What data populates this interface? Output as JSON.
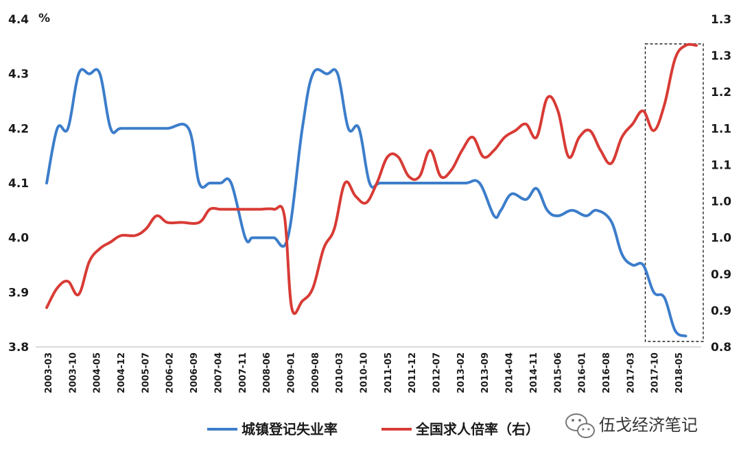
{
  "chart_data": {
    "type": "line",
    "unit_label": "%",
    "x_tick_labels": [
      "2003-03",
      "2003-10",
      "2004-05",
      "2004-12",
      "2005-07",
      "2006-02",
      "2006-09",
      "2007-04",
      "2007-11",
      "2008-06",
      "2009-01",
      "2009-08",
      "2010-03",
      "2010-10",
      "2011-05",
      "2011-12",
      "2012-07",
      "2013-02",
      "2013-09",
      "2014-04",
      "2014-11",
      "2015-06",
      "2016-01",
      "2016-08",
      "2017-03",
      "2017-10",
      "2018-05"
    ],
    "y_left": {
      "ticks": [
        "4.4",
        "4.3",
        "4.2",
        "4.1",
        "4.0",
        "3.9",
        "3.8"
      ],
      "ylim": [
        3.8,
        4.4
      ]
    },
    "y_right": {
      "ticks": [
        "1.3",
        "1.3",
        "1.2",
        "1.1",
        "1.1",
        "1.0",
        "1.0",
        "0.9",
        "0.9",
        "0.8"
      ],
      "ylim": [
        0.8,
        1.3
      ]
    },
    "series": [
      {
        "name": "城镇登记失业率",
        "axis": "left",
        "color": "#3C7DCB",
        "points": [
          [
            2003.17,
            4.1
          ],
          [
            2003.42,
            4.2
          ],
          [
            2003.67,
            4.2
          ],
          [
            2003.92,
            4.3
          ],
          [
            2004.17,
            4.3
          ],
          [
            2004.42,
            4.3
          ],
          [
            2004.67,
            4.2
          ],
          [
            2004.92,
            4.2
          ],
          [
            2005.5,
            4.2
          ],
          [
            2006.0,
            4.2
          ],
          [
            2006.5,
            4.2
          ],
          [
            2006.75,
            4.1
          ],
          [
            2007.0,
            4.1
          ],
          [
            2007.25,
            4.1
          ],
          [
            2007.5,
            4.1
          ],
          [
            2007.83,
            4.0
          ],
          [
            2008.0,
            4.0
          ],
          [
            2008.25,
            4.0
          ],
          [
            2008.5,
            4.0
          ],
          [
            2008.83,
            4.0
          ],
          [
            2009.17,
            4.2
          ],
          [
            2009.42,
            4.3
          ],
          [
            2009.75,
            4.3
          ],
          [
            2010.0,
            4.3
          ],
          [
            2010.25,
            4.2
          ],
          [
            2010.5,
            4.2
          ],
          [
            2010.75,
            4.1
          ],
          [
            2011.0,
            4.1
          ],
          [
            2011.5,
            4.1
          ],
          [
            2012.0,
            4.1
          ],
          [
            2012.5,
            4.1
          ],
          [
            2013.0,
            4.1
          ],
          [
            2013.33,
            4.1
          ],
          [
            2013.67,
            4.04
          ],
          [
            2013.83,
            4.05
          ],
          [
            2014.08,
            4.08
          ],
          [
            2014.42,
            4.07
          ],
          [
            2014.67,
            4.09
          ],
          [
            2014.92,
            4.05
          ],
          [
            2015.17,
            4.04
          ],
          [
            2015.5,
            4.05
          ],
          [
            2015.83,
            4.04
          ],
          [
            2016.08,
            4.05
          ],
          [
            2016.42,
            4.03
          ],
          [
            2016.67,
            3.97
          ],
          [
            2016.92,
            3.95
          ],
          [
            2017.17,
            3.95
          ],
          [
            2017.42,
            3.9
          ],
          [
            2017.67,
            3.89
          ],
          [
            2017.92,
            3.83
          ],
          [
            2018.17,
            3.82
          ]
        ]
      },
      {
        "name": "全国求人倍率（右）",
        "axis": "right",
        "color": "#D83B35",
        "points": [
          [
            2003.17,
            0.86
          ],
          [
            2003.42,
            0.89
          ],
          [
            2003.67,
            0.9
          ],
          [
            2003.92,
            0.88
          ],
          [
            2004.17,
            0.93
          ],
          [
            2004.42,
            0.95
          ],
          [
            2004.67,
            0.96
          ],
          [
            2004.92,
            0.97
          ],
          [
            2005.25,
            0.97
          ],
          [
            2005.5,
            0.98
          ],
          [
            2005.75,
            1.0
          ],
          [
            2006.0,
            0.99
          ],
          [
            2006.33,
            0.99
          ],
          [
            2006.75,
            0.99
          ],
          [
            2007.0,
            1.01
          ],
          [
            2007.25,
            1.01
          ],
          [
            2007.5,
            1.01
          ],
          [
            2007.83,
            1.01
          ],
          [
            2008.17,
            1.01
          ],
          [
            2008.5,
            1.01
          ],
          [
            2008.75,
            1.0
          ],
          [
            2008.92,
            0.86
          ],
          [
            2009.17,
            0.87
          ],
          [
            2009.42,
            0.89
          ],
          [
            2009.67,
            0.95
          ],
          [
            2009.92,
            0.98
          ],
          [
            2010.17,
            1.05
          ],
          [
            2010.42,
            1.03
          ],
          [
            2010.67,
            1.02
          ],
          [
            2010.92,
            1.05
          ],
          [
            2011.17,
            1.09
          ],
          [
            2011.42,
            1.09
          ],
          [
            2011.67,
            1.06
          ],
          [
            2011.92,
            1.06
          ],
          [
            2012.17,
            1.1
          ],
          [
            2012.42,
            1.06
          ],
          [
            2012.67,
            1.07
          ],
          [
            2012.92,
            1.1
          ],
          [
            2013.17,
            1.12
          ],
          [
            2013.42,
            1.09
          ],
          [
            2013.67,
            1.1
          ],
          [
            2013.92,
            1.12
          ],
          [
            2014.17,
            1.13
          ],
          [
            2014.42,
            1.14
          ],
          [
            2014.67,
            1.12
          ],
          [
            2014.92,
            1.18
          ],
          [
            2015.17,
            1.16
          ],
          [
            2015.42,
            1.09
          ],
          [
            2015.67,
            1.12
          ],
          [
            2015.92,
            1.13
          ],
          [
            2016.17,
            1.1
          ],
          [
            2016.42,
            1.08
          ],
          [
            2016.67,
            1.12
          ],
          [
            2016.92,
            1.14
          ],
          [
            2017.17,
            1.16
          ],
          [
            2017.42,
            1.13
          ],
          [
            2017.67,
            1.17
          ],
          [
            2017.92,
            1.24
          ],
          [
            2018.17,
            1.26
          ],
          [
            2018.42,
            1.26
          ]
        ]
      }
    ],
    "highlight_box": {
      "x_range": [
        2017.22,
        2018.58
      ],
      "description": "dashed rectangle"
    },
    "legend": "bottom",
    "grid": false
  },
  "watermark": {
    "text": "伍戈经济笔记",
    "icon": "wechat-icon"
  }
}
